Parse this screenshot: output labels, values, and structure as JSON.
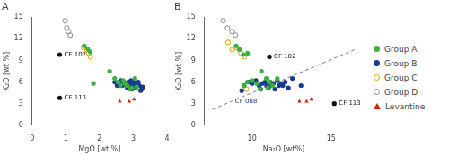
{
  "chart_data": [
    {
      "type": "scatter",
      "title": "A",
      "xlabel": "MgO [wt %]",
      "ylabel": "K₂O [wt %]",
      "xlim": [
        0,
        4
      ],
      "ylim": [
        0,
        15
      ],
      "xticks": [
        0,
        1,
        2,
        3,
        4
      ],
      "yticks": [
        0,
        3,
        6,
        9,
        12,
        15
      ],
      "grid": false,
      "series": [
        {
          "name": "Group A",
          "color": "#3cb043",
          "marker": "circle",
          "x": [
            1.55,
            1.65,
            1.72,
            1.82,
            2.3,
            2.45,
            2.55,
            2.62,
            2.7,
            2.75,
            2.82,
            2.9,
            2.95,
            3.05,
            3.1
          ],
          "values": [
            11.0,
            10.6,
            10.2,
            5.8,
            7.5,
            6.5,
            6.0,
            5.5,
            6.2,
            5.8,
            5.5,
            5.0,
            5.2,
            6.5,
            5.3
          ]
        },
        {
          "name": "Group B",
          "color": "#1a3a8f",
          "marker": "circle",
          "x": [
            2.45,
            2.52,
            2.58,
            2.63,
            2.68,
            2.72,
            2.77,
            2.82,
            2.85,
            2.88,
            2.9,
            2.93,
            2.96,
            2.98,
            3.02,
            3.05,
            3.08,
            3.12,
            3.15,
            3.18,
            3.22,
            3.25,
            3.28
          ],
          "values": [
            6.0,
            5.5,
            5.8,
            6.2,
            5.5,
            6.0,
            5.8,
            5.2,
            6.0,
            5.5,
            5.8,
            6.2,
            5.0,
            5.5,
            6.0,
            5.8,
            5.2,
            5.5,
            6.0,
            5.5,
            4.8,
            5.0,
            5.3
          ]
        },
        {
          "name": "Group C",
          "color": "#e89b00",
          "marker": "ring",
          "x": [
            1.52,
            1.62,
            1.68,
            1.73
          ],
          "values": [
            10.8,
            10.5,
            10.0,
            9.5
          ]
        },
        {
          "name": "Group D",
          "color": "#888888",
          "marker": "ring",
          "x": [
            0.98,
            1.03,
            1.08,
            1.13
          ],
          "values": [
            14.5,
            13.5,
            13.0,
            12.5
          ]
        },
        {
          "name": "Levantine",
          "color": "#cc2200",
          "marker": "triangle",
          "x": [
            2.6,
            2.88,
            3.02
          ],
          "values": [
            3.3,
            3.3,
            3.6
          ]
        }
      ],
      "annotations": [
        {
          "text": "CF 102",
          "x": 0.82,
          "y": 9.8,
          "color": "#111111",
          "marker": "circle"
        },
        {
          "text": "CF 113",
          "x": 0.82,
          "y": 3.8,
          "color": "#111111",
          "marker": "circle"
        }
      ]
    },
    {
      "type": "scatter",
      "title": "B",
      "xlabel": "Na₂O [wt%]",
      "ylabel": "K₂O [wt %]",
      "xlim": [
        7,
        17
      ],
      "ylim": [
        0,
        15
      ],
      "xticks": [
        10,
        15
      ],
      "yticks": [
        0,
        3,
        6,
        9,
        12,
        15
      ],
      "grid": false,
      "legend": "right",
      "series": [
        {
          "name": "Group A",
          "color": "#3cb043",
          "marker": "circle",
          "x": [
            9.0,
            9.2,
            9.5,
            9.7,
            10.0,
            10.3,
            10.6,
            10.9,
            11.1,
            11.3,
            11.6,
            9.45,
            9.72,
            10.5,
            11.0
          ],
          "values": [
            11.0,
            10.5,
            5.5,
            6.0,
            6.2,
            5.8,
            7.5,
            6.5,
            6.0,
            5.5,
            6.5,
            9.8,
            10.0,
            5.0,
            5.2
          ]
        },
        {
          "name": "Group B",
          "color": "#1a3a8f",
          "marker": "circle",
          "x": [
            9.5,
            9.8,
            10.0,
            10.25,
            10.45,
            10.55,
            10.65,
            10.82,
            10.92,
            11.05,
            11.15,
            11.25,
            11.35,
            11.45,
            11.6,
            11.7,
            11.82,
            11.95,
            12.1,
            12.3,
            12.55,
            13.1,
            9.35
          ],
          "values": [
            5.5,
            6.0,
            5.8,
            6.2,
            5.5,
            5.0,
            5.8,
            6.0,
            5.5,
            5.2,
            6.0,
            5.5,
            5.8,
            5.0,
            6.2,
            5.5,
            5.8,
            5.5,
            6.0,
            5.2,
            6.5,
            5.5,
            4.8
          ]
        },
        {
          "name": "Group C",
          "color": "#e89b00",
          "marker": "ring",
          "x": [
            8.48,
            8.75,
            9.0,
            9.3,
            9.52,
            9.65
          ],
          "values": [
            11.5,
            10.5,
            10.8,
            10.0,
            9.5,
            5.0
          ]
        },
        {
          "name": "Group D",
          "color": "#888888",
          "marker": "ring",
          "x": [
            8.18,
            8.45,
            8.75,
            8.95
          ],
          "values": [
            14.5,
            13.5,
            13.0,
            12.5
          ]
        },
        {
          "name": "Levantine",
          "color": "#cc2200",
          "marker": "triangle",
          "x": [
            13.0,
            13.45,
            13.75
          ],
          "values": [
            3.3,
            3.3,
            3.6
          ]
        }
      ],
      "lines": [
        {
          "x": [
            7.5,
            16.5
          ],
          "values": [
            2.2,
            10.5
          ],
          "color": "gray",
          "line_style": "dashed"
        }
      ],
      "annotations": [
        {
          "text": "CF 102",
          "x": 11.1,
          "y": 9.5,
          "color": "#111111",
          "marker": "circle"
        },
        {
          "text": "CF 113",
          "x": 15.2,
          "y": 3.0,
          "color": "#111111",
          "marker": "circle"
        },
        {
          "text": "CF 088",
          "x": 9.5,
          "y": 4.3,
          "color": "#1a3a8f"
        }
      ]
    }
  ]
}
